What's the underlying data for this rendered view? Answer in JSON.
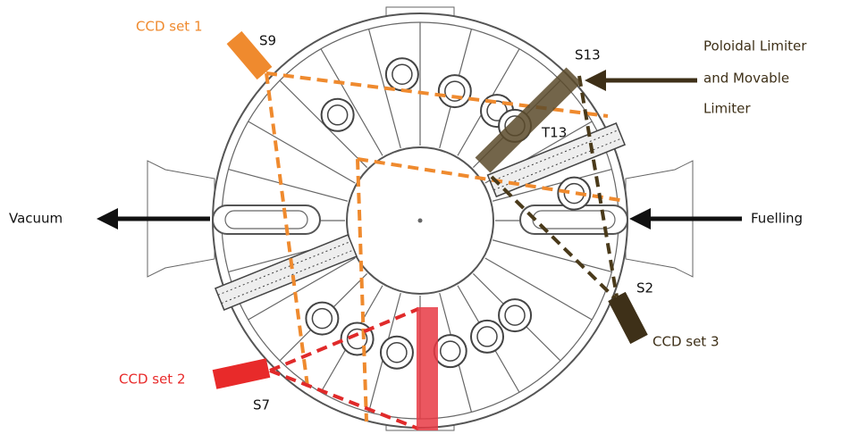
{
  "labels": {
    "ccd_set_1": "CCD set 1",
    "s9": "S9",
    "s13": "S13",
    "limiter": [
      "Poloidal Limiter",
      "and Movable",
      "Limiter"
    ],
    "t13": "T13",
    "vacuum": "Vacuum",
    "fuelling": "Fuelling",
    "s2": "S2",
    "ccd_set_3": "CCD set 3",
    "ccd_set_2": "CCD set 2",
    "s7": "S7"
  }
}
